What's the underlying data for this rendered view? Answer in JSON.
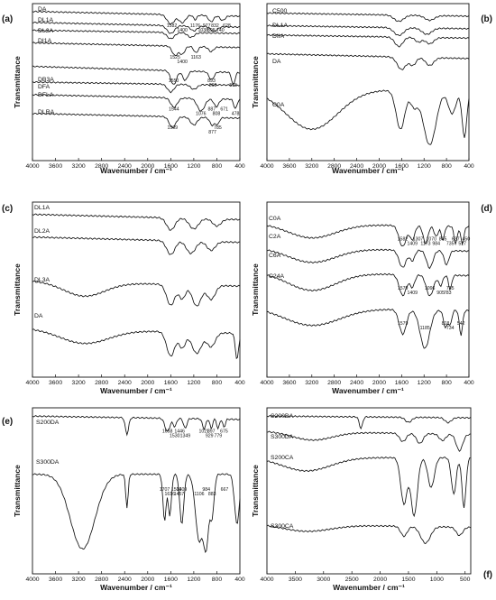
{
  "colors": {
    "ink": "#111111",
    "background": "#ffffff"
  },
  "chart_data": [
    {
      "type": "line",
      "panel": "(a)",
      "xlabel": "Wavenumber / cm⁻¹",
      "ylabel": "Transmittance",
      "xlim": [
        4000,
        400
      ],
      "x_ticks": [
        4000,
        3600,
        3200,
        2800,
        2400,
        2000,
        1600,
        1200,
        800,
        400
      ],
      "series": [
        {
          "name": "DA",
          "peaks": [
            1582,
            1400,
            1176,
            1038,
            977,
            895,
            832,
            740,
            628
          ]
        },
        {
          "name": "DL1A",
          "peaks": []
        },
        {
          "name": "DL2A",
          "peaks": []
        },
        {
          "name": "DI1A",
          "peaks": [
            1525,
            1400,
            1163
          ]
        },
        {
          "name": "DB3A",
          "peaks": [
            1550,
            869,
            893,
            515
          ]
        },
        {
          "name": "DFA",
          "peaks": []
        },
        {
          "name": "DFLA",
          "peaks": [
            1544,
            1076,
            887,
            808,
            671,
            478
          ]
        },
        {
          "name": "DLRA",
          "peaks": [
            1569,
            877,
            785
          ]
        }
      ]
    },
    {
      "type": "line",
      "panel": "(b)",
      "xlabel": "Wavenumber / cm⁻¹",
      "ylabel": "Transmittance",
      "xlim": [
        4000,
        400
      ],
      "x_ticks": [
        4000,
        3600,
        3200,
        2800,
        2400,
        2000,
        1600,
        1200,
        800,
        400
      ],
      "series": [
        {
          "name": "C500",
          "peaks": []
        },
        {
          "name": "DL1A",
          "peaks": []
        },
        {
          "name": "DIIA",
          "peaks": []
        },
        {
          "name": "DA",
          "peaks": []
        },
        {
          "name": "C0A",
          "peaks": []
        }
      ]
    },
    {
      "type": "line",
      "panel": "(c)",
      "xlabel": "Wavenumber / cm⁻¹",
      "ylabel": "Transmittance",
      "xlim": [
        4000,
        400
      ],
      "x_ticks": [
        4000,
        3600,
        3200,
        2800,
        2400,
        2000,
        1600,
        1200,
        800,
        400
      ],
      "series": [
        {
          "name": "DL1A",
          "peaks": []
        },
        {
          "name": "DL2A",
          "peaks": []
        },
        {
          "name": "DL3A",
          "peaks": []
        },
        {
          "name": "DA",
          "peaks": []
        }
      ]
    },
    {
      "type": "line",
      "panel": "(d)",
      "xlabel": "Wavenumber / cm⁻¹",
      "ylabel": "Transmittance",
      "xlim": [
        4000,
        400
      ],
      "x_ticks": [
        4000,
        3600,
        3200,
        2800,
        2400,
        2000,
        1600,
        1200,
        800,
        400
      ],
      "series": [
        {
          "name": "C0A",
          "peaks": [
            1582,
            1409,
            1307,
            1173,
            1070,
            984,
            865,
            735,
            637,
            517,
            450
          ]
        },
        {
          "name": "C2A",
          "peaks": []
        },
        {
          "name": "C6A",
          "peaks": [
            1579,
            1409,
            1096,
            905,
            735,
            783
          ]
        },
        {
          "name": "C24A",
          "peaks": [
            1579,
            1185,
            818,
            734,
            542
          ]
        }
      ]
    },
    {
      "type": "line",
      "panel": "(e)",
      "xlabel": "Wavenumber / cm⁻¹",
      "ylabel": "Transmittance",
      "xlim": [
        4000,
        400
      ],
      "x_ticks": [
        4000,
        3600,
        3200,
        2800,
        2400,
        2000,
        1600,
        1200,
        800,
        400
      ],
      "series": [
        {
          "name": "S200DA",
          "peaks": [
            1658,
            1530,
            1446,
            1349,
            1021,
            929,
            897,
            779,
            675
          ]
        },
        {
          "name": "S300DA",
          "peaks": [
            1707,
            1616,
            1501,
            1457,
            1409,
            1106,
            984,
            883,
            667
          ]
        }
      ]
    },
    {
      "type": "line",
      "panel": "(f)",
      "xlabel": "Wavenumber / cm⁻¹",
      "ylabel": "Transmittance",
      "xlim": [
        4000,
        400
      ],
      "x_ticks": [
        4000,
        3500,
        3000,
        2500,
        2000,
        1500,
        1000,
        500
      ],
      "series": [
        {
          "name": "S200DA",
          "peaks": []
        },
        {
          "name": "S300DA",
          "peaks": []
        },
        {
          "name": "S200CA",
          "peaks": []
        },
        {
          "name": "S300CA",
          "peaks": []
        }
      ]
    }
  ]
}
